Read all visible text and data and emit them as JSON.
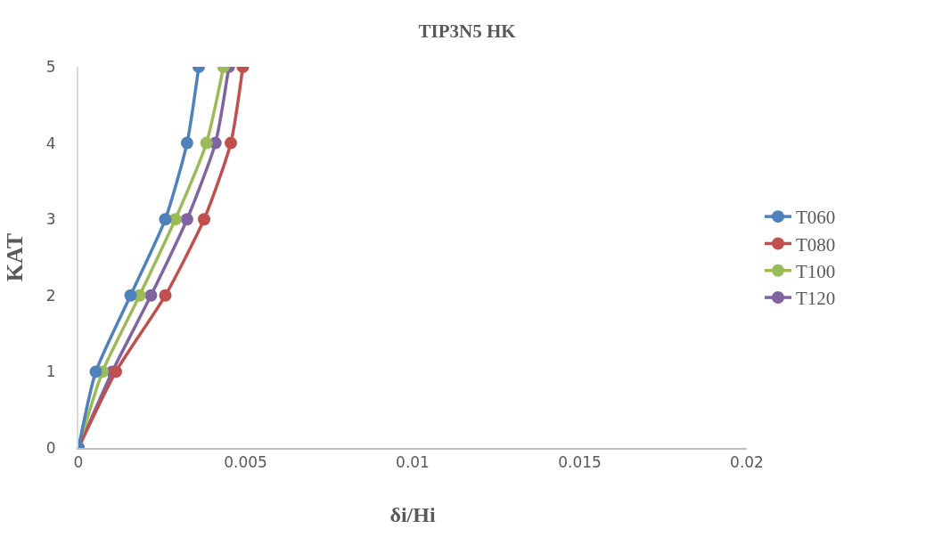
{
  "chart_data": {
    "type": "line",
    "title": "TIP3N5 HK",
    "xlabel": "δi/Hi",
    "ylabel": "KAT",
    "xlim": [
      0,
      0.02
    ],
    "xticks": [
      0,
      0.005,
      0.01,
      0.015,
      0.02
    ],
    "ylim": [
      0,
      5
    ],
    "yticks": [
      0,
      1,
      2,
      3,
      4,
      5
    ],
    "grid": false,
    "legend": "right",
    "marker": "circle",
    "line_style": "solid",
    "series": [
      {
        "name": "T060",
        "color": "#4f81bd",
        "x": [
          0,
          0.00052,
          0.00156,
          0.0026,
          0.00325,
          0.0036
        ],
        "values": [
          0,
          1,
          2,
          3,
          4,
          5
        ]
      },
      {
        "name": "T080",
        "color": "#c0504d",
        "x": [
          0,
          0.00112,
          0.0026,
          0.00376,
          0.00456,
          0.00492
        ],
        "values": [
          0,
          1,
          2,
          3,
          4,
          5
        ]
      },
      {
        "name": "T100",
        "color": "#9bbb59",
        "x": [
          0,
          0.00072,
          0.00183,
          0.0029,
          0.00383,
          0.00434
        ],
        "values": [
          0,
          1,
          2,
          3,
          4,
          5
        ]
      },
      {
        "name": "T120",
        "color": "#8064a2",
        "x": [
          0,
          0.00101,
          0.00217,
          0.00325,
          0.0041,
          0.0045
        ],
        "values": [
          0,
          1,
          2,
          3,
          4,
          5
        ]
      }
    ]
  }
}
